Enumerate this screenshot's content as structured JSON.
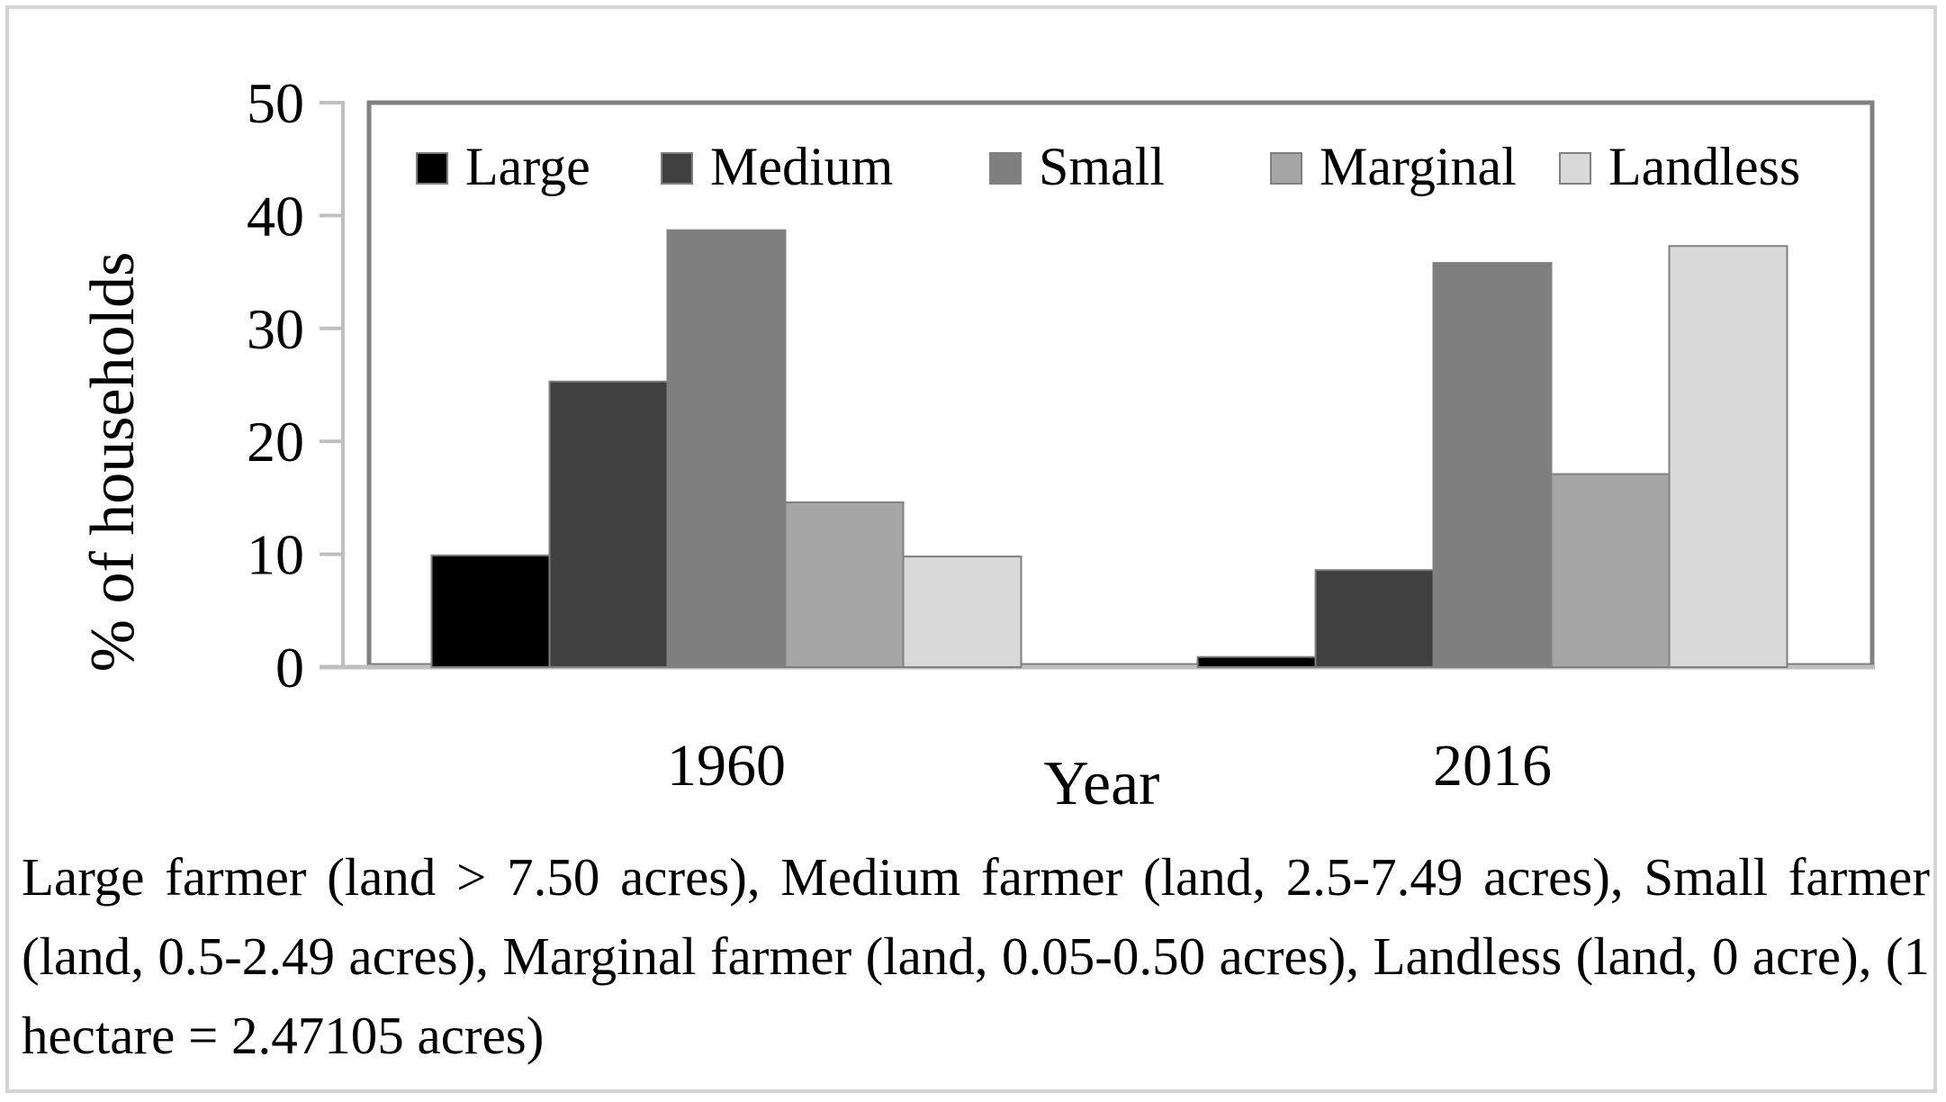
{
  "chart_data": {
    "type": "bar",
    "title": "",
    "xlabel": "Year",
    "ylabel": "% of households",
    "categories": [
      "1960",
      "2016"
    ],
    "ylim": [
      0,
      50
    ],
    "yticks": [
      0,
      10,
      20,
      30,
      40,
      50
    ],
    "series": [
      {
        "name": "Large",
        "color": "#000000",
        "values": [
          9.9,
          0.9
        ]
      },
      {
        "name": "Medium",
        "color": "#404040",
        "values": [
          25.3,
          8.6
        ]
      },
      {
        "name": "Small",
        "color": "#7f7f7f",
        "values": [
          38.7,
          35.8
        ]
      },
      {
        "name": "Marginal",
        "color": "#a6a6a6",
        "values": [
          14.6,
          17.1
        ]
      },
      {
        "name": "Landless",
        "color": "#d9d9d9",
        "values": [
          9.8,
          37.3
        ]
      }
    ],
    "legend_position": "top"
  },
  "caption": "Large farmer (land > 7.50 acres), Medium farmer (land, 2.5-7.49 acres), Small farmer (land, 0.5-2.49 acres), Marginal farmer (land, 0.05-0.50 acres), Landless (land, 0 acre), (1 hectare = 2.47105 acres)"
}
